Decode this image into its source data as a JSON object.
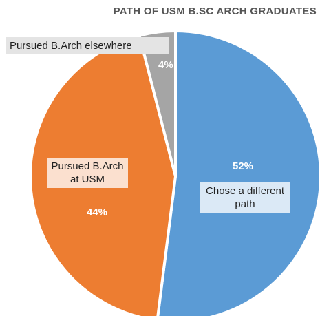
{
  "chart_data": {
    "type": "pie",
    "title": "PATH OF USM B.SC ARCH GRADUATES",
    "categories": [
      "Chose a different path",
      "Pursued B.Arch at USM",
      "Pursued B.Arch elsewhere"
    ],
    "values": [
      52,
      44,
      4
    ],
    "value_labels": [
      "52%",
      "44%",
      "4%"
    ],
    "colors": [
      "#5b9bd5",
      "#ed7d31",
      "#a5a5a5"
    ]
  }
}
